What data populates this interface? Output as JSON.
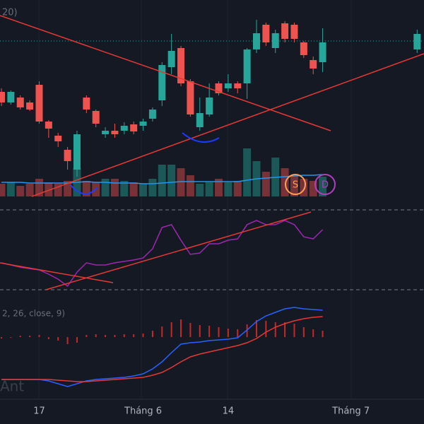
{
  "chart_data": {
    "type": "candlestick",
    "indicator_label": "20)",
    "watermark": "Ant",
    "categories": [
      null,
      null,
      null,
      null,
      "17",
      null,
      null,
      null,
      null,
      null,
      null,
      null,
      null,
      null,
      null,
      "Tháng 6",
      null,
      null,
      null,
      null,
      null,
      null,
      null,
      null,
      "14",
      null,
      null,
      null,
      null,
      null,
      null,
      null,
      null,
      null,
      null,
      null,
      null,
      "Tháng 7",
      null,
      null,
      null,
      null,
      null,
      null,
      null
    ],
    "open": [
      170,
      155,
      162,
      155,
      180,
      128,
      108,
      88,
      60,
      162,
      143,
      110,
      115,
      115,
      124,
      122,
      132,
      158,
      205,
      232,
      185,
      120,
      138,
      182,
      175,
      182,
      182,
      230,
      265,
      232,
      267,
      265,
      240,
      215,
      212,
      null,
      null,
      null,
      null,
      null,
      null,
      null,
      null,
      null,
      230
    ],
    "high": [
      175,
      172,
      165,
      158,
      185,
      130,
      112,
      92,
      115,
      165,
      145,
      120,
      125,
      127,
      128,
      132,
      148,
      212,
      252,
      235,
      188,
      162,
      182,
      185,
      195,
      185,
      232,
      272,
      268,
      258,
      270,
      268,
      242,
      220,
      260,
      null,
      null,
      null,
      null,
      null,
      null,
      null,
      null,
      null,
      258
    ],
    "low": [
      150,
      152,
      145,
      143,
      125,
      105,
      92,
      60,
      50,
      140,
      120,
      105,
      105,
      110,
      110,
      115,
      128,
      150,
      195,
      178,
      135,
      115,
      135,
      165,
      170,
      168,
      160,
      225,
      235,
      225,
      240,
      240,
      218,
      195,
      198,
      null,
      null,
      null,
      null,
      null,
      null,
      null,
      null,
      null,
      225
    ],
    "close": [
      155,
      170,
      148,
      145,
      128,
      118,
      100,
      72,
      110,
      145,
      125,
      115,
      110,
      122,
      114,
      128,
      145,
      208,
      228,
      182,
      138,
      140,
      162,
      168,
      182,
      175,
      230,
      253,
      240,
      253,
      245,
      245,
      222,
      203,
      240,
      null,
      null,
      null,
      null,
      null,
      null,
      null,
      null,
      null,
      252
    ],
    "ylim": [
      10,
      300
    ],
    "price_line": 242,
    "up_color": "#26a69a",
    "down_color": "#ef5350",
    "annotations": [
      "S",
      "D"
    ],
    "volume": {
      "values": [
        18,
        20,
        15,
        18,
        25,
        20,
        18,
        22,
        40,
        22,
        20,
        25,
        25,
        22,
        20,
        18,
        25,
        45,
        45,
        40,
        30,
        18,
        20,
        25,
        20,
        22,
        68,
        50,
        35,
        55,
        40,
        30,
        25,
        22,
        28,
        null,
        null,
        null,
        null,
        null,
        null,
        null,
        null,
        null,
        null
      ],
      "ma": [
        20,
        20,
        20,
        19,
        19,
        19,
        19,
        19,
        20,
        21,
        20,
        20,
        19,
        19,
        19,
        18,
        18,
        19,
        20,
        21,
        21,
        21,
        21,
        21,
        21,
        21,
        23,
        25,
        26,
        27,
        28,
        29,
        30,
        30,
        31,
        null,
        null,
        null,
        null,
        null,
        null,
        null,
        null,
        null,
        null
      ],
      "ma_color": "#2196f3",
      "ylim": [
        0,
        80
      ]
    },
    "rsi": {
      "values": [
        43.5,
        42.4,
        41.3,
        40.6,
        39.9,
        37.8,
        35.3,
        31.8,
        38.8,
        43.5,
        42.4,
        42.4,
        43.5,
        44.2,
        44.9,
        45.9,
        50.5,
        61.2,
        62.6,
        54.8,
        47.7,
        48.4,
        53.0,
        53.0,
        54.8,
        55.5,
        62.6,
        64.7,
        62.6,
        62.6,
        64.7,
        62.6,
        56.5,
        55.5,
        60.1,
        null,
        null,
        null,
        null,
        null,
        null,
        null,
        null,
        null,
        null
      ],
      "levels": [
        70,
        30
      ],
      "color": "#9c27b0",
      "ylim": [
        30,
        70
      ]
    },
    "macd": {
      "label": "2, 26, close, 9)",
      "histogram": [
        -2,
        -1,
        2,
        2,
        3,
        -3,
        -5,
        -10,
        -8,
        3,
        4,
        3,
        3,
        4,
        4,
        5,
        9,
        15,
        21,
        25,
        20,
        17,
        16,
        14,
        12,
        11,
        18,
        24,
        23,
        21,
        21,
        19,
        14,
        11,
        9,
        null,
        null,
        null,
        null,
        null,
        null,
        null,
        null,
        null,
        null
      ],
      "macd": [
        -60,
        -60,
        -60,
        -60,
        -60,
        -62,
        -66,
        -70,
        -66,
        -62,
        -60,
        -59,
        -58,
        -57,
        -55,
        -52,
        -45,
        -35,
        -22,
        -10,
        -8,
        -7,
        -5,
        -4,
        -3,
        -1,
        10,
        22,
        30,
        35,
        40,
        42,
        40,
        39,
        38,
        null,
        null,
        null,
        null,
        null,
        null,
        null,
        null,
        null,
        null
      ],
      "signal": [
        -60,
        -60,
        -60,
        -60,
        -60,
        -60,
        -61,
        -62,
        -63,
        -63,
        -62,
        -61,
        -60,
        -59,
        -58,
        -57,
        -54,
        -50,
        -43,
        -35,
        -28,
        -24,
        -21,
        -18,
        -15,
        -12,
        -8,
        -2,
        7,
        14,
        19,
        23,
        26,
        28,
        29,
        null,
        null,
        null,
        null,
        null,
        null,
        null,
        null,
        null,
        null
      ],
      "macd_color": "#2962ff",
      "signal_color": "#e53935",
      "hist_color": "#c62828",
      "ylim": [
        -80,
        50
      ]
    }
  }
}
